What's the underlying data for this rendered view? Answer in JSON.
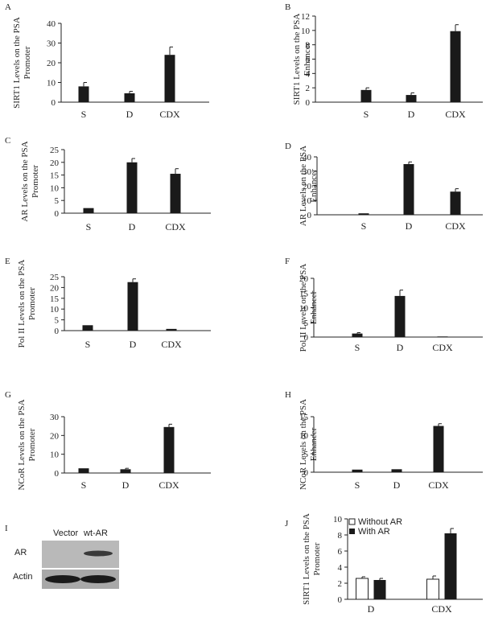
{
  "chart_data": [
    {
      "id": "A",
      "type": "bar",
      "ylabel": [
        "SIRT1 Levels on the PSA",
        "Promoter"
      ],
      "categories": [
        "S",
        "D",
        "CDX"
      ],
      "values": [
        8,
        4.5,
        24
      ],
      "errors": [
        2,
        1,
        4
      ],
      "yticks": [
        "0",
        "10",
        "20",
        "30",
        "40"
      ],
      "ylim": [
        0,
        40
      ]
    },
    {
      "id": "B",
      "type": "bar",
      "ylabel": [
        "SIRT1 Levels on the PSA",
        "Enhancer"
      ],
      "categories": [
        "S",
        "D",
        "CDX"
      ],
      "values": [
        1.7,
        1.0,
        9.9
      ],
      "errors": [
        0.3,
        0.3,
        0.9
      ],
      "yticks": [
        "0",
        "2",
        "4",
        "6",
        "8",
        "10",
        "12"
      ],
      "ylim": [
        0,
        12
      ]
    },
    {
      "id": "C",
      "type": "bar",
      "ylabel": [
        "AR Levels on the PSA",
        "Promoter"
      ],
      "categories": [
        "S",
        "D",
        "CDX"
      ],
      "values": [
        2,
        20,
        15.5
      ],
      "errors": [
        0,
        1.5,
        2
      ],
      "yticks": [
        "0",
        "5",
        "10",
        "15",
        "20",
        "25"
      ],
      "ylim": [
        0,
        25
      ]
    },
    {
      "id": "D",
      "type": "bar",
      "ylabel": [
        "AR Levels on the PSA",
        "Enhancer"
      ],
      "categories": [
        "S",
        "D",
        "CDX"
      ],
      "values": [
        1,
        35,
        16
      ],
      "errors": [
        0,
        1.5,
        2
      ],
      "yticks": [
        "0",
        "10",
        "20",
        "30",
        "40"
      ],
      "ylim": [
        0,
        40
      ]
    },
    {
      "id": "E",
      "type": "bar",
      "ylabel": [
        "Pol II Levels on the PSA",
        "Promoter"
      ],
      "categories": [
        "S",
        "D",
        "CDX"
      ],
      "values": [
        2.5,
        22.5,
        0.8
      ],
      "errors": [
        0,
        1.5,
        0
      ],
      "yticks": [
        "0",
        "5",
        "10",
        "15",
        "20",
        "25"
      ],
      "ylim": [
        0,
        25
      ]
    },
    {
      "id": "F",
      "type": "bar",
      "ylabel": [
        "Pol II Levels on the PSA",
        "Enhancer"
      ],
      "categories": [
        "S",
        "D",
        "CDX"
      ],
      "values": [
        1.2,
        14,
        0.2
      ],
      "errors": [
        0.3,
        2,
        0
      ],
      "yticks": [
        "0",
        "5",
        "10",
        "15",
        "20"
      ],
      "ylim": [
        0,
        20
      ]
    },
    {
      "id": "G",
      "type": "bar",
      "ylabel": [
        "NCoR Levels on the PSA",
        "Promoter"
      ],
      "categories": [
        "S",
        "D",
        "CDX"
      ],
      "values": [
        2.5,
        2,
        24.5
      ],
      "errors": [
        0,
        0.5,
        1.5
      ],
      "yticks": [
        "0",
        "10",
        "20",
        "30"
      ],
      "ylim": [
        0,
        30
      ]
    },
    {
      "id": "H",
      "type": "bar",
      "ylabel": [
        "NCoR Levels on the PSA",
        "Enhancer"
      ],
      "categories": [
        "S",
        "D",
        "CDX"
      ],
      "values": [
        0.7,
        0.8,
        12.5
      ],
      "errors": [
        0,
        0,
        0.6
      ],
      "yticks": [
        "0",
        "5",
        "10",
        "15"
      ],
      "ylim": [
        0,
        15
      ]
    },
    {
      "id": "J",
      "type": "bar",
      "ylabel": [
        "SIRT1 Levels on the PSA",
        "Promoter"
      ],
      "categories": [
        "D",
        "CDX"
      ],
      "series": [
        {
          "name": "Without AR",
          "values": [
            2.6,
            2.5
          ],
          "errors": [
            0.2,
            0.4
          ]
        },
        {
          "name": "With AR",
          "values": [
            2.4,
            8.2
          ],
          "errors": [
            0.2,
            0.6
          ]
        }
      ],
      "yticks": [
        "0",
        "2",
        "4",
        "6",
        "8",
        "10"
      ],
      "ylim": [
        0,
        10
      ]
    }
  ],
  "blot": {
    "id": "I",
    "lanes": [
      "Vector",
      "wt-AR"
    ],
    "rows": [
      "AR",
      "Actin"
    ]
  },
  "colors": {
    "bar_filled": "#1a1a1a",
    "bar_open": "#ffffff"
  }
}
